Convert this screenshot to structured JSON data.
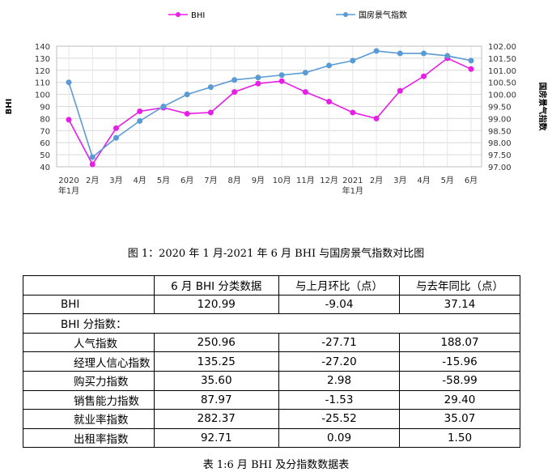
{
  "chart_data": {
    "type": "line",
    "categories": [
      "2020年1月",
      "2月",
      "3月",
      "4月",
      "5月",
      "6月",
      "7月",
      "8月",
      "9月",
      "10月",
      "11月",
      "12月",
      "2021年1月",
      "2月",
      "3月",
      "4月",
      "5月",
      "6月"
    ],
    "x_tick_top": [
      "2020",
      "2月",
      "3月",
      "4月",
      "5月",
      "6月",
      "7月",
      "8月",
      "9月",
      "10月",
      "11月",
      "12月",
      "2021",
      "2月",
      "3月",
      "4月",
      "5月",
      "6月"
    ],
    "x_tick_bottom": [
      "年1月",
      "",
      "",
      "",
      "",
      "",
      "",
      "",
      "",
      "",
      "",
      "",
      "年1月",
      "",
      "",
      "",
      "",
      ""
    ],
    "series": [
      {
        "name": "BHI",
        "axis": "left",
        "color": "#e61ee6",
        "values": [
          79,
          42,
          72,
          86,
          89,
          84,
          85,
          102,
          109,
          111,
          102,
          94,
          85,
          80,
          103,
          115,
          130,
          121
        ]
      },
      {
        "name": "国房景气指数",
        "axis": "right",
        "color": "#5b9bd5",
        "values": [
          100.5,
          97.4,
          98.2,
          98.9,
          99.5,
          100.0,
          100.3,
          100.6,
          100.7,
          100.8,
          100.9,
          101.2,
          101.4,
          101.8,
          101.7,
          101.7,
          101.6,
          101.4
        ]
      }
    ],
    "ylabel": "BHI",
    "y2label": "国房景气指数",
    "ylim": [
      40,
      140
    ],
    "yticks": [
      40,
      50,
      60,
      70,
      80,
      90,
      100,
      110,
      120,
      130,
      140
    ],
    "y2lim": [
      97.0,
      102.0
    ],
    "y2ticks": [
      "97.00",
      "97.50",
      "98.00",
      "98.50",
      "99.00",
      "99.50",
      "100.00",
      "100.50",
      "101.00",
      "101.50",
      "102.00"
    ],
    "grid": true,
    "legend_placement": "top"
  },
  "captions": {
    "figure": "图 1：2020 年 1 月-2021 年 6 月 BHI 与国房景气指数对比图",
    "table": "表 1:6 月 BHI 及分指数数据表"
  },
  "table": {
    "headers": [
      "",
      "6 月 BHI 分类数据",
      "与上月环比（点）",
      "与去年同比（点）"
    ],
    "bhi_row": {
      "label": "BHI",
      "value": "120.99",
      "mom": "-9.04",
      "yoy": "37.14"
    },
    "sub_header": "BHI 分指数：",
    "rows": [
      {
        "label": "人气指数",
        "value": "250.96",
        "mom": "-27.71",
        "yoy": "188.07"
      },
      {
        "label": "经理人信心指数",
        "value": "135.25",
        "mom": "-27.20",
        "yoy": "-15.96"
      },
      {
        "label": "购买力指数",
        "value": "35.60",
        "mom": "2.98",
        "yoy": "-58.99"
      },
      {
        "label": "销售能力指数",
        "value": "87.97",
        "mom": "-1.53",
        "yoy": "29.40"
      },
      {
        "label": "就业率指数",
        "value": "282.37",
        "mom": "-25.52",
        "yoy": "35.07"
      },
      {
        "label": "出租率指数",
        "value": "92.71",
        "mom": "0.09",
        "yoy": "1.50"
      }
    ]
  }
}
